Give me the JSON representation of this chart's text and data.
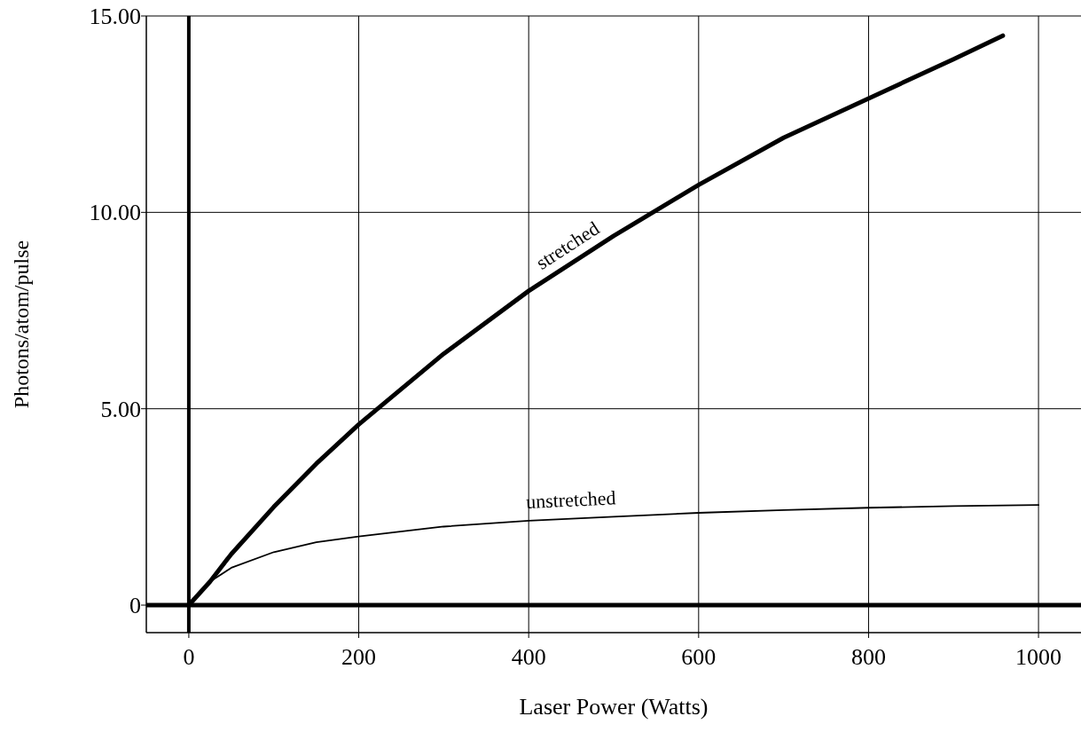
{
  "chart_data": {
    "type": "line",
    "xlabel": "Laser Power (Watts)",
    "ylabel": "Photons/atom/pulse",
    "xlim": [
      -50,
      1050
    ],
    "ylim": [
      -0.7,
      15
    ],
    "xticks": [
      0,
      200,
      400,
      600,
      800,
      1000
    ],
    "yticks": [
      {
        "value": 0,
        "label": "0"
      },
      {
        "value": 5,
        "label": "5.00"
      },
      {
        "value": 10,
        "label": "10.00"
      },
      {
        "value": 15,
        "label": "15.00"
      }
    ],
    "grid": true,
    "marker": "none",
    "line_style": "solid",
    "series": [
      {
        "color": "#000000",
        "x": [
          0,
          25,
          50,
          100,
          150,
          200,
          300,
          400,
          500,
          600,
          700,
          800,
          900,
          958
        ],
        "values": [
          0,
          0.6,
          1.3,
          2.5,
          3.6,
          4.6,
          6.4,
          8.0,
          9.4,
          10.7,
          11.9,
          12.9,
          13.9,
          14.5
        ]
      },
      {
        "color": "#000000",
        "x": [
          0,
          25,
          50,
          100,
          150,
          200,
          300,
          400,
          500,
          600,
          700,
          800,
          900,
          1000
        ],
        "values": [
          0,
          0.6,
          0.95,
          1.35,
          1.6,
          1.75,
          2.0,
          2.15,
          2.25,
          2.35,
          2.42,
          2.48,
          2.52,
          2.55
        ]
      }
    ],
    "annotations": [
      "stretched",
      "unstretched"
    ]
  }
}
